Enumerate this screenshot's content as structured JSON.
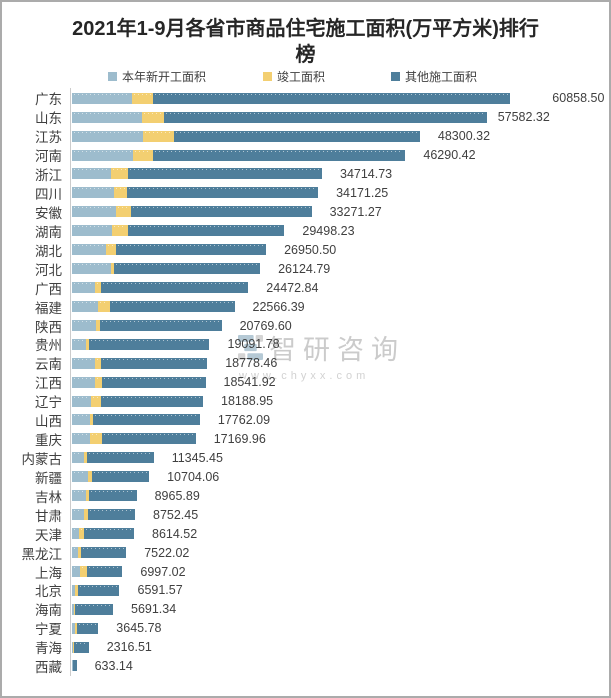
{
  "title_line1": "2021年1-9月各省市商品住宅施工面积(万平方米)排行",
  "title_line2": "榜",
  "full_title": "2021年1-9月各省市商品住宅施工面积(万平方米)排行榜",
  "colors": {
    "new_start": "#9dbccd",
    "completed": "#f3cf71",
    "other": "#4e7e9b",
    "text": "#404040",
    "axis": "#cccccc",
    "watermark": "#cbcbcb"
  },
  "watermark": {
    "brand": "智研咨询",
    "url": "www.chyxx.com",
    "logo": "zhiyan-logo-icon"
  },
  "chart_data": {
    "type": "bar",
    "orientation": "horizontal",
    "stacked": true,
    "unit": "万平方米",
    "value_range": [
      0,
      60858.5
    ],
    "legend_position": "top",
    "grid": false,
    "categories": [
      "广东",
      "山东",
      "江苏",
      "河南",
      "浙江",
      "四川",
      "安徽",
      "湖南",
      "湖北",
      "河北",
      "广西",
      "福建",
      "陕西",
      "贵州",
      "云南",
      "江西",
      "辽宁",
      "山西",
      "重庆",
      "内蒙古",
      "新疆",
      "吉林",
      "甘肃",
      "天津",
      "黑龙江",
      "上海",
      "北京",
      "海南",
      "宁夏",
      "青海",
      "西藏"
    ],
    "series": [
      {
        "name": "本年新开工面积",
        "color": "#9dbccd",
        "estimated": true,
        "values": [
          8331,
          9720,
          9858,
          8470,
          5415,
          5832,
          6109,
          5554,
          4721,
          5415,
          3235,
          3610,
          3332,
          1944,
          3235,
          3152,
          2680,
          2541,
          2541,
          1666,
          2222,
          1944,
          1708,
          930,
          791,
          1152,
          375,
          236,
          375,
          180,
          90
        ]
      },
      {
        "name": "竣工面积",
        "color": "#f3cf71",
        "estimated": true,
        "values": [
          2916,
          3013,
          4304,
          2777,
          2360,
          1805,
          2083,
          2222,
          1389,
          375,
          833,
          1708,
          514,
          375,
          791,
          1014,
          1347,
          417,
          1624,
          375,
          555,
          458,
          514,
          778,
          500,
          930,
          458,
          222,
          278,
          97,
          40
        ]
      },
      {
        "name": "其他施工面积",
        "color": "#4e7e9b",
        "estimated": true,
        "values": [
          49611.5,
          44849.32,
          34138.32,
          35043.42,
          26939.73,
          26534.25,
          25079.27,
          21722.23,
          20840.5,
          20334.79,
          20404.84,
          17248.39,
          16923.6,
          16772.78,
          14752.46,
          14375.92,
          14161.95,
          14804.09,
          13004.96,
          9304.45,
          7927.06,
          6563.89,
          6530.45,
          6906.52,
          6231.02,
          4915.02,
          5758.57,
          5233.34,
          2992.78,
          2039.51,
          503.14
        ]
      }
    ],
    "totals": [
      60858.5,
      57582.32,
      48300.32,
      46290.42,
      34714.73,
      34171.25,
      33271.27,
      29498.23,
      26950.5,
      26124.79,
      24472.84,
      22566.39,
      20769.6,
      19091.78,
      18778.46,
      18541.92,
      18188.95,
      17762.09,
      17169.96,
      11345.45,
      10704.06,
      8965.89,
      8752.45,
      8614.52,
      7522.02,
      6997.02,
      6591.57,
      5691.34,
      3645.78,
      2316.51,
      633.14
    ]
  }
}
